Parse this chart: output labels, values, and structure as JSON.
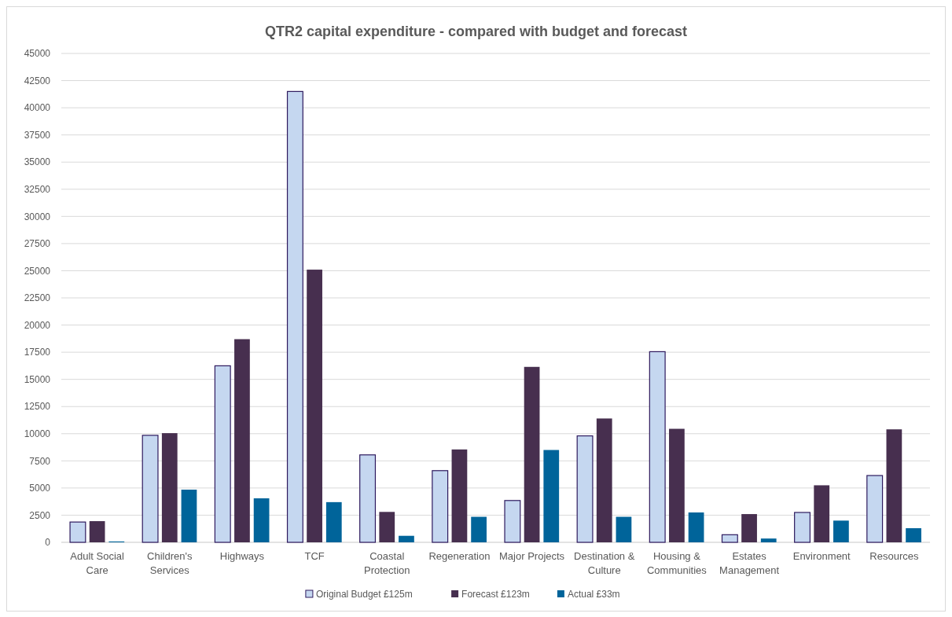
{
  "chart_data": {
    "type": "bar",
    "title": "QTR2 capital expenditure - compared with budget and forecast",
    "categories": [
      "Adult Social Care",
      "Children's Services",
      "Highways",
      "TCF",
      "Coastal Protection",
      "Regeneration",
      "Major Projects",
      "Destination & Culture",
      "Housing & Communities",
      "Estates Management",
      "Environment",
      "Resources"
    ],
    "series": [
      {
        "name": "Original Budget £125m",
        "color": "#c5d7f0",
        "values": [
          1870,
          9850,
          16250,
          41500,
          8050,
          6600,
          3850,
          9800,
          17550,
          700,
          2750,
          6150
        ]
      },
      {
        "name": "Forecast £123m",
        "color": "#472f4f",
        "values": [
          1950,
          10050,
          18700,
          25100,
          2800,
          8550,
          16150,
          11400,
          10450,
          2600,
          5250,
          10400
        ]
      },
      {
        "name": "Actual £33m",
        "color": "#00649a",
        "values": [
          80,
          4850,
          4050,
          3700,
          600,
          2350,
          8500,
          2350,
          2750,
          350,
          2000,
          1300
        ]
      }
    ],
    "ylim": [
      0,
      45000
    ],
    "yticks": [
      0,
      2500,
      5000,
      7500,
      10000,
      12500,
      15000,
      17500,
      20000,
      22500,
      25000,
      27500,
      30000,
      32500,
      35000,
      37500,
      40000,
      42500,
      45000
    ],
    "grid": "y",
    "legend": "bottom"
  }
}
